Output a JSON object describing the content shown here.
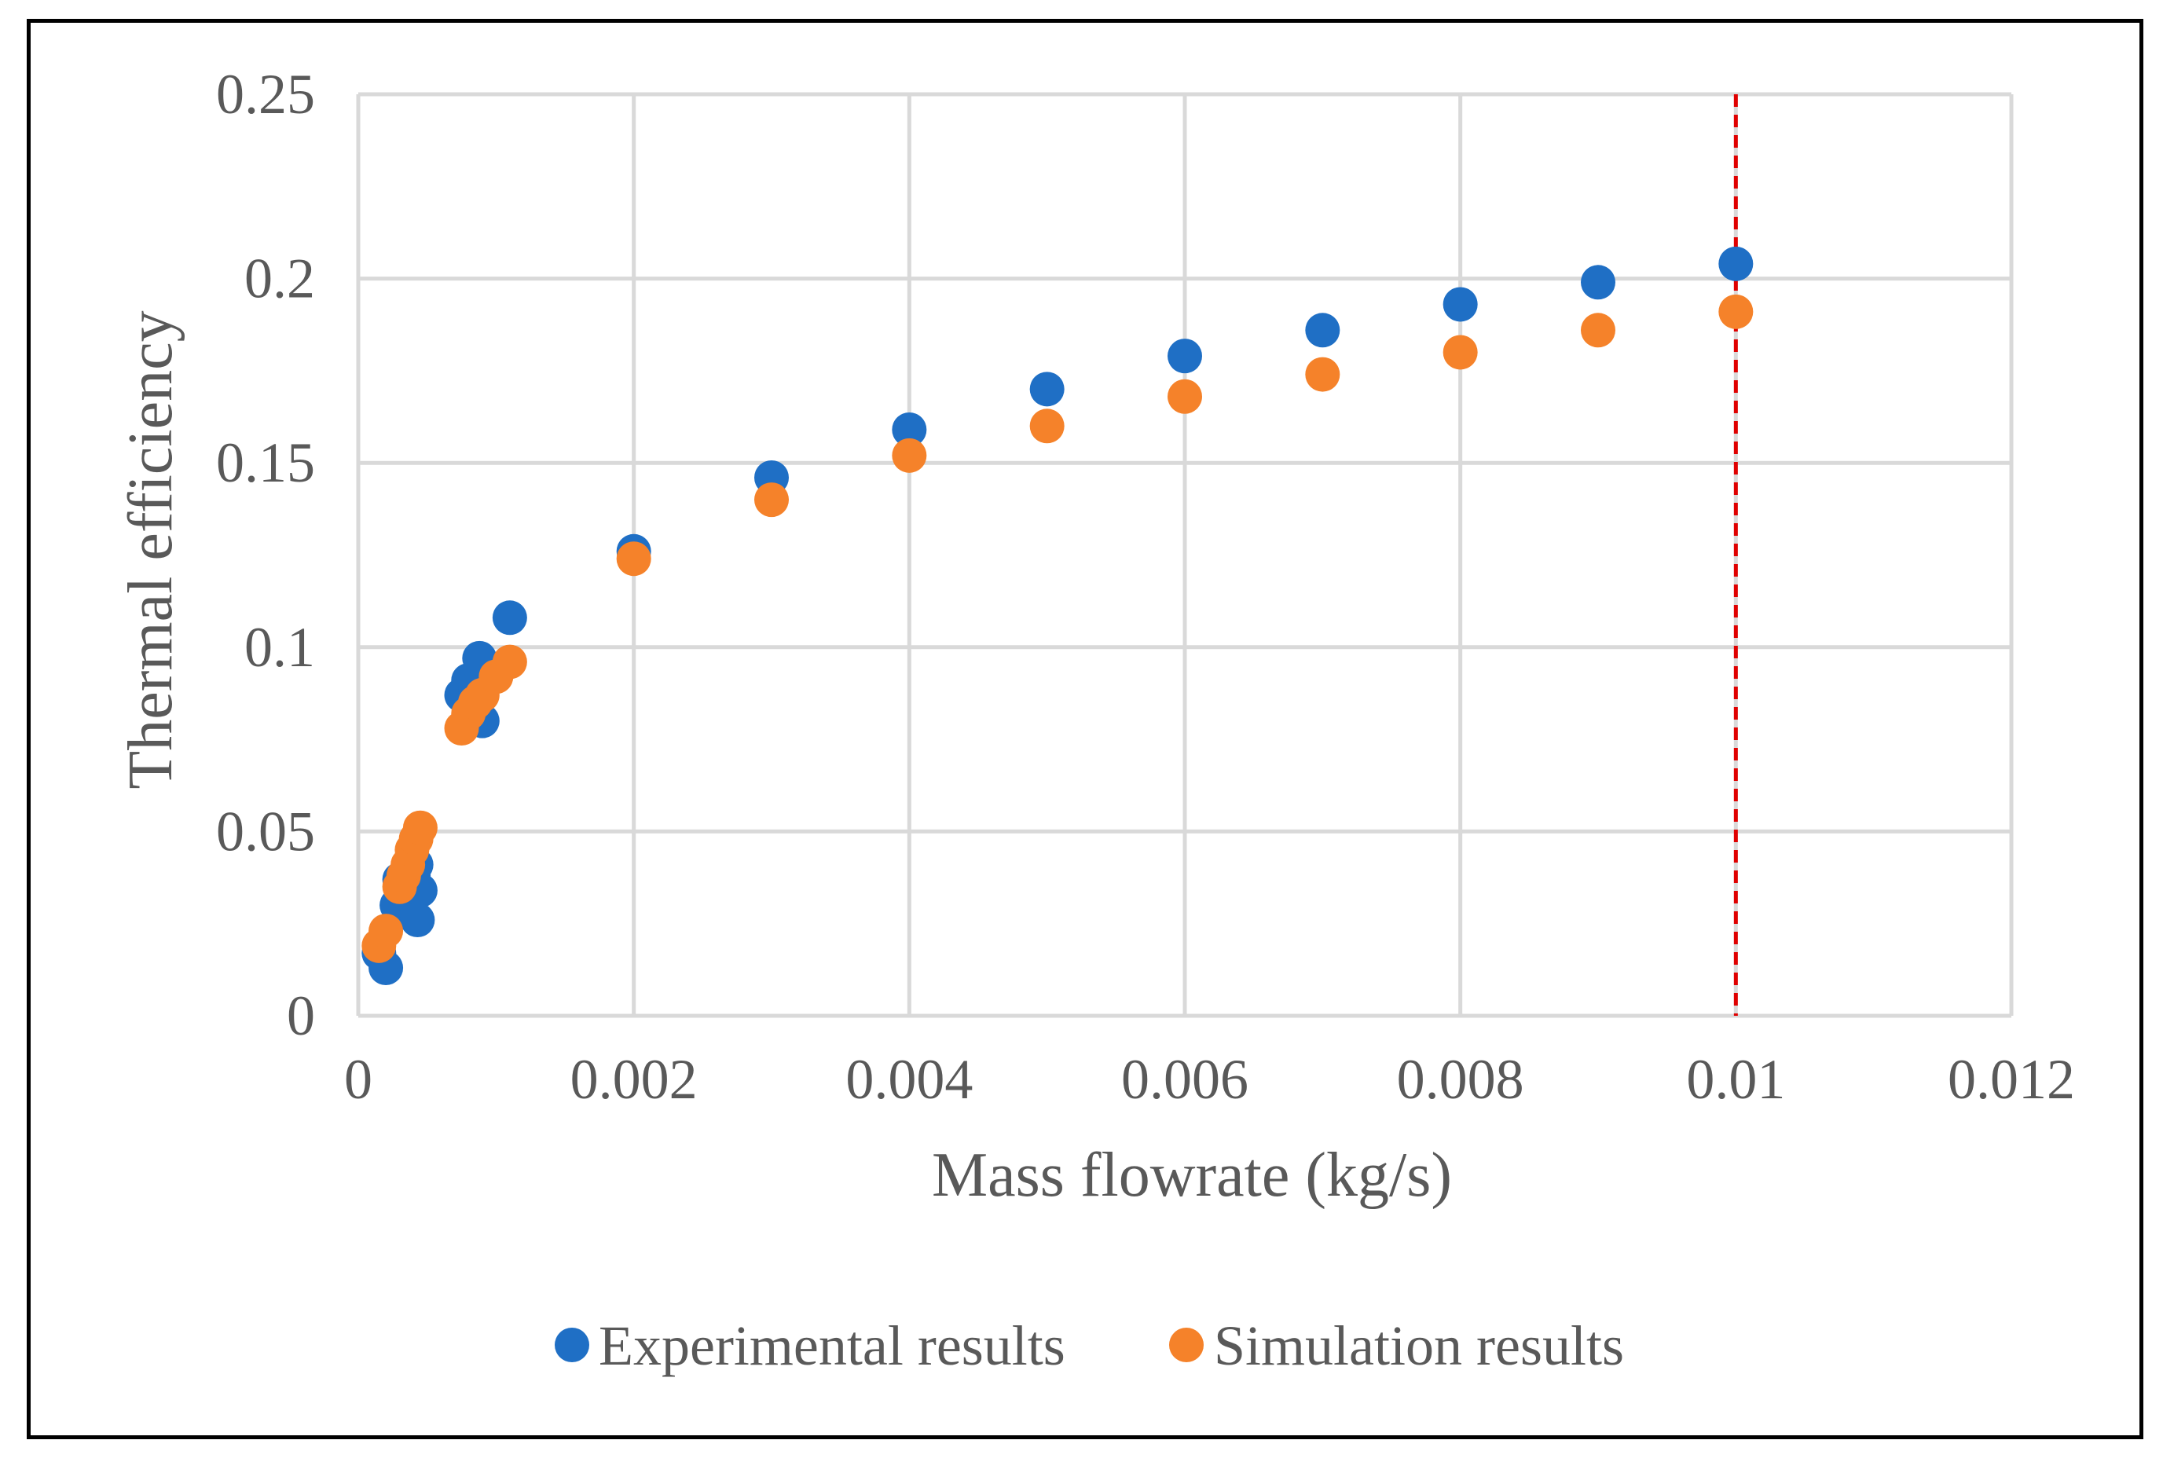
{
  "chart_data": {
    "type": "scatter",
    "title": "",
    "xlabel": "Mass flowrate (kg/s)",
    "ylabel": "Thermal efficiency",
    "xlim": [
      0,
      0.012
    ],
    "ylim": [
      0,
      0.25
    ],
    "x_ticks": [
      "0",
      "0.002",
      "0.004",
      "0.006",
      "0.008",
      "0.01",
      "0.012"
    ],
    "y_ticks": [
      "0",
      "0.05",
      "0.1",
      "0.15",
      "0.2",
      "0.25"
    ],
    "grid": true,
    "legend_position": "bottom",
    "reference_line": {
      "x": 0.01,
      "style": "dashed",
      "color": "#e00000"
    },
    "series": [
      {
        "name": "Experimental results",
        "color": "#1f6fc5",
        "points": [
          [
            0.00015,
            0.017
          ],
          [
            0.0002,
            0.013
          ],
          [
            0.00028,
            0.03
          ],
          [
            0.0003,
            0.037
          ],
          [
            0.00035,
            0.033
          ],
          [
            0.0004,
            0.038
          ],
          [
            0.00042,
            0.041
          ],
          [
            0.00045,
            0.034
          ],
          [
            0.00043,
            0.026
          ],
          [
            0.00075,
            0.087
          ],
          [
            0.0008,
            0.091
          ],
          [
            0.00085,
            0.089
          ],
          [
            0.00088,
            0.097
          ],
          [
            0.0009,
            0.08
          ],
          [
            0.0011,
            0.108
          ],
          [
            0.002,
            0.126
          ],
          [
            0.003,
            0.146
          ],
          [
            0.004,
            0.159
          ],
          [
            0.005,
            0.17
          ],
          [
            0.006,
            0.179
          ],
          [
            0.007,
            0.186
          ],
          [
            0.008,
            0.193
          ],
          [
            0.009,
            0.199
          ],
          [
            0.01,
            0.204
          ]
        ]
      },
      {
        "name": "Simulation results",
        "color": "#f5822a",
        "points": [
          [
            0.00015,
            0.019
          ],
          [
            0.0002,
            0.023
          ],
          [
            0.0003,
            0.035
          ],
          [
            0.00033,
            0.038
          ],
          [
            0.00036,
            0.041
          ],
          [
            0.00039,
            0.045
          ],
          [
            0.00042,
            0.048
          ],
          [
            0.00045,
            0.051
          ],
          [
            0.00075,
            0.078
          ],
          [
            0.0008,
            0.082
          ],
          [
            0.00085,
            0.085
          ],
          [
            0.0009,
            0.087
          ],
          [
            0.001,
            0.092
          ],
          [
            0.0011,
            0.096
          ],
          [
            0.002,
            0.124
          ],
          [
            0.003,
            0.14
          ],
          [
            0.004,
            0.152
          ],
          [
            0.005,
            0.16
          ],
          [
            0.006,
            0.168
          ],
          [
            0.007,
            0.174
          ],
          [
            0.008,
            0.18
          ],
          [
            0.009,
            0.186
          ],
          [
            0.01,
            0.191
          ]
        ]
      }
    ]
  }
}
